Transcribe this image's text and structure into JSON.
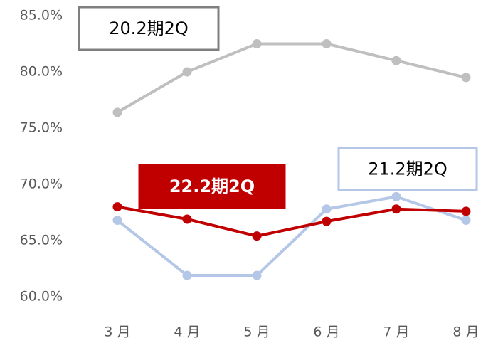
{
  "chart_data": {
    "type": "line",
    "categories": [
      "3 月",
      "4 月",
      "5 月",
      "6 月",
      "7 月",
      "8 月"
    ],
    "series": [
      {
        "name": "20.2期2Q",
        "color": "#bfbfbf",
        "values": [
          76.4,
          80.0,
          82.5,
          82.5,
          81.0,
          79.5
        ]
      },
      {
        "name": "21.2期2Q",
        "color": "#b4c7e7",
        "values": [
          66.8,
          61.9,
          61.9,
          67.8,
          68.9,
          66.8
        ]
      },
      {
        "name": "22.2期2Q",
        "color": "#c00000",
        "values": [
          68.0,
          66.9,
          65.4,
          66.7,
          67.8,
          67.6
        ]
      }
    ],
    "ylim": [
      60,
      85
    ],
    "yticks": [
      {
        "value": 60,
        "label": "60.0%"
      },
      {
        "value": 65,
        "label": "65.0%"
      },
      {
        "value": 70,
        "label": "70.0%"
      },
      {
        "value": 75,
        "label": "75.0%"
      },
      {
        "value": 80,
        "label": "80.0%"
      },
      {
        "value": 85,
        "label": "85.0%"
      }
    ],
    "grid": false
  }
}
